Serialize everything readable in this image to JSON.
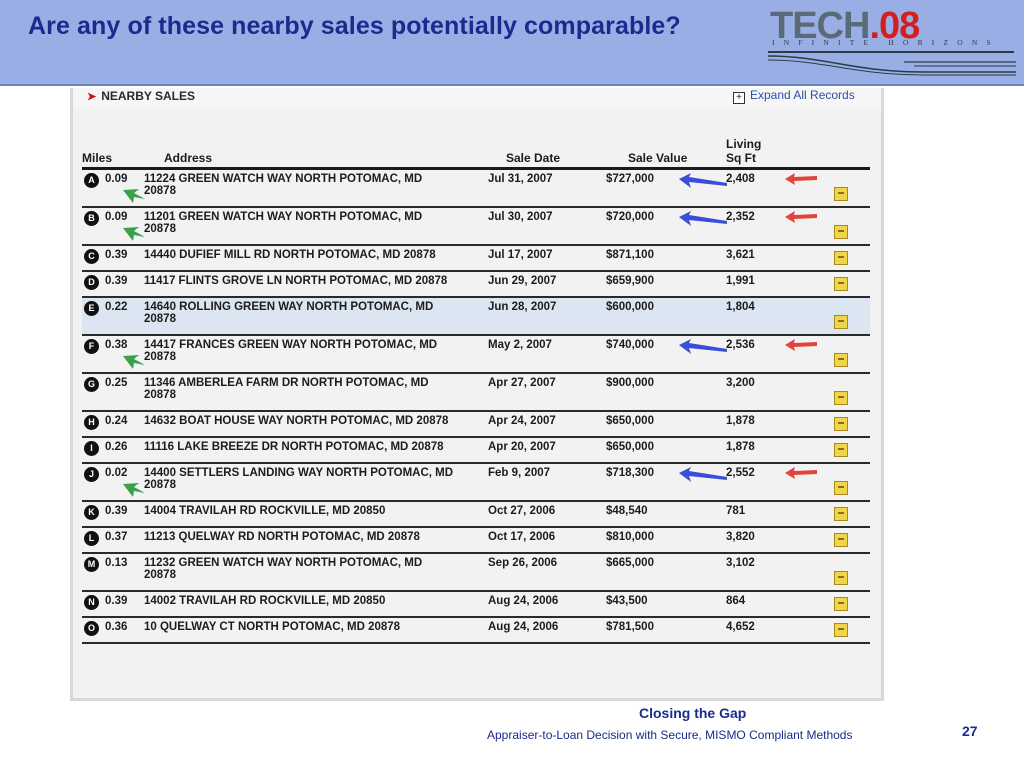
{
  "slide": {
    "title": "Are any of these nearby sales potentially comparable?",
    "page_number": "27"
  },
  "logo": {
    "word_left": "TECH",
    "word_right": ".08",
    "tagline": "INFINITE HORIZONS"
  },
  "panel": {
    "section_title": "NEARBY SALES",
    "expand_label": "Expand All Records"
  },
  "table": {
    "headers": {
      "miles": "Miles",
      "address": "Address",
      "sale_date": "Sale Date",
      "sale_value": "Sale Value",
      "living_1": "Living",
      "living_2": "Sq Ft"
    },
    "rows": [
      {
        "marker": "A",
        "miles": "0.09",
        "addr1": "11224 GREEN WATCH WAY NORTH POTOMAC, MD",
        "addr2": "20878",
        "date": "Jul 31, 2007",
        "value": "$727,000",
        "living": "2,408",
        "highlight": false,
        "arrows": [
          "green",
          "blue",
          "red"
        ]
      },
      {
        "marker": "B",
        "miles": "0.09",
        "addr1": "11201 GREEN WATCH WAY NORTH POTOMAC, MD",
        "addr2": "20878",
        "date": "Jul 30, 2007",
        "value": "$720,000",
        "living": "2,352",
        "highlight": false,
        "arrows": [
          "green",
          "blue",
          "red"
        ]
      },
      {
        "marker": "C",
        "miles": "0.39",
        "addr1": "14440 DUFIEF MILL RD NORTH POTOMAC, MD 20878",
        "addr2": "",
        "date": "Jul 17, 2007",
        "value": "$871,100",
        "living": "3,621",
        "highlight": false,
        "arrows": []
      },
      {
        "marker": "D",
        "miles": "0.39",
        "addr1": "11417 FLINTS GROVE LN NORTH POTOMAC, MD 20878",
        "addr2": "",
        "date": "Jun 29, 2007",
        "value": "$659,900",
        "living": "1,991",
        "highlight": false,
        "arrows": []
      },
      {
        "marker": "E",
        "miles": "0.22",
        "addr1": "14640 ROLLING GREEN WAY NORTH POTOMAC, MD",
        "addr2": "20878",
        "date": "Jun 28, 2007",
        "value": "$600,000",
        "living": "1,804",
        "highlight": true,
        "arrows": []
      },
      {
        "marker": "F",
        "miles": "0.38",
        "addr1": "14417 FRANCES GREEN WAY NORTH POTOMAC, MD",
        "addr2": "20878",
        "date": "May 2, 2007",
        "value": "$740,000",
        "living": "2,536",
        "highlight": false,
        "arrows": [
          "green",
          "blue",
          "red"
        ]
      },
      {
        "marker": "G",
        "miles": "0.25",
        "addr1": "11346 AMBERLEA FARM DR NORTH POTOMAC, MD",
        "addr2": "20878",
        "date": "Apr 27, 2007",
        "value": "$900,000",
        "living": "3,200",
        "highlight": false,
        "arrows": []
      },
      {
        "marker": "H",
        "miles": "0.24",
        "addr1": "14632 BOAT HOUSE WAY NORTH POTOMAC, MD 20878",
        "addr2": "",
        "date": "Apr 24, 2007",
        "value": "$650,000",
        "living": "1,878",
        "highlight": false,
        "arrows": []
      },
      {
        "marker": "I",
        "miles": "0.26",
        "addr1": "11116 LAKE BREEZE DR NORTH POTOMAC, MD 20878",
        "addr2": "",
        "date": "Apr 20, 2007",
        "value": "$650,000",
        "living": "1,878",
        "highlight": false,
        "arrows": []
      },
      {
        "marker": "J",
        "miles": "0.02",
        "addr1": "14400 SETTLERS LANDING WAY NORTH POTOMAC, MD",
        "addr2": "20878",
        "date": "Feb 9, 2007",
        "value": "$718,300",
        "living": "2,552",
        "highlight": false,
        "arrows": [
          "green",
          "blue",
          "red"
        ]
      },
      {
        "marker": "K",
        "miles": "0.39",
        "addr1": "14004 TRAVILAH RD ROCKVILLE, MD 20850",
        "addr2": "",
        "date": "Oct 27, 2006",
        "value": "$48,540",
        "living": "781",
        "highlight": false,
        "arrows": []
      },
      {
        "marker": "L",
        "miles": "0.37",
        "addr1": "11213 QUELWAY RD NORTH POTOMAC, MD 20878",
        "addr2": "",
        "date": "Oct 17, 2006",
        "value": "$810,000",
        "living": "3,820",
        "highlight": false,
        "arrows": []
      },
      {
        "marker": "M",
        "miles": "0.13",
        "addr1": "11232 GREEN WATCH WAY NORTH POTOMAC, MD",
        "addr2": "20878",
        "date": "Sep 26, 2006",
        "value": "$665,000",
        "living": "3,102",
        "highlight": false,
        "arrows": []
      },
      {
        "marker": "N",
        "miles": "0.39",
        "addr1": "14002 TRAVILAH RD ROCKVILLE, MD 20850",
        "addr2": "",
        "date": "Aug 24, 2006",
        "value": "$43,500",
        "living": "864",
        "highlight": false,
        "arrows": []
      },
      {
        "marker": "O",
        "miles": "0.36",
        "addr1": "10 QUELWAY CT NORTH POTOMAC, MD 20878",
        "addr2": "",
        "date": "Aug 24, 2006",
        "value": "$781,500",
        "living": "4,652",
        "highlight": false,
        "arrows": []
      }
    ]
  },
  "colors": {
    "header_band": "#9aaee6",
    "title_text": "#1a2b8e",
    "arrow_green": "#3aa04a",
    "arrow_blue": "#3a4ed8",
    "arrow_red": "#e0443a",
    "highlight_row": "#dbe6f2"
  },
  "footer": {
    "title": "Closing the Gap",
    "subtitle": "Appraiser-to-Loan Decision with Secure, MISMO Compliant Methods"
  }
}
